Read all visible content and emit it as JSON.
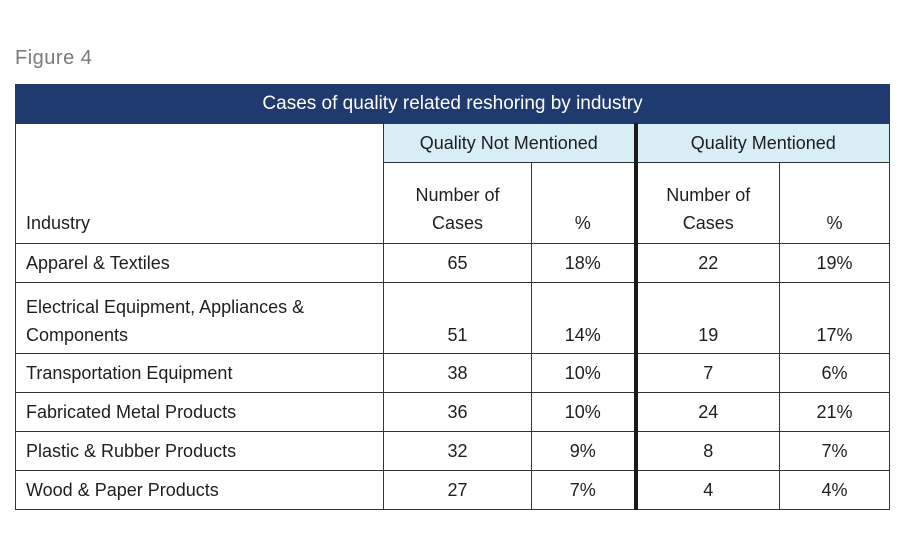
{
  "figure_label": "Figure 4",
  "table": {
    "title": "Cases of quality related reshoring by industry",
    "group_headers": [
      "Quality Not Mentioned",
      "Quality Mentioned"
    ],
    "column_headers": {
      "industry": "Industry",
      "cases_line1": "Number of",
      "cases_line2": "Cases",
      "pct": "%"
    },
    "rows": [
      {
        "industry": "Apparel & Textiles",
        "qnm_cases": "65",
        "qnm_pct": "18%",
        "qm_cases": "22",
        "qm_pct": "19%"
      },
      {
        "industry": "Electrical Equipment, Appliances & Components",
        "qnm_cases": "51",
        "qnm_pct": "14%",
        "qm_cases": "19",
        "qm_pct": "17%"
      },
      {
        "industry": "Transportation Equipment",
        "qnm_cases": "38",
        "qnm_pct": "10%",
        "qm_cases": "7",
        "qm_pct": "6%"
      },
      {
        "industry": "Fabricated Metal Products",
        "qnm_cases": "36",
        "qnm_pct": "10%",
        "qm_cases": "24",
        "qm_pct": "21%"
      },
      {
        "industry": "Plastic & Rubber Products",
        "qnm_cases": "32",
        "qnm_pct": "9%",
        "qm_cases": "8",
        "qm_pct": "7%"
      },
      {
        "industry": "Wood & Paper Products",
        "qnm_cases": "27",
        "qnm_pct": "7%",
        "qm_cases": "4",
        "qm_pct": "4%"
      }
    ]
  },
  "colors": {
    "title_bg": "#1f3a6e",
    "group_header_bg": "#d6eef4",
    "figure_label": "#7a7a7a"
  }
}
